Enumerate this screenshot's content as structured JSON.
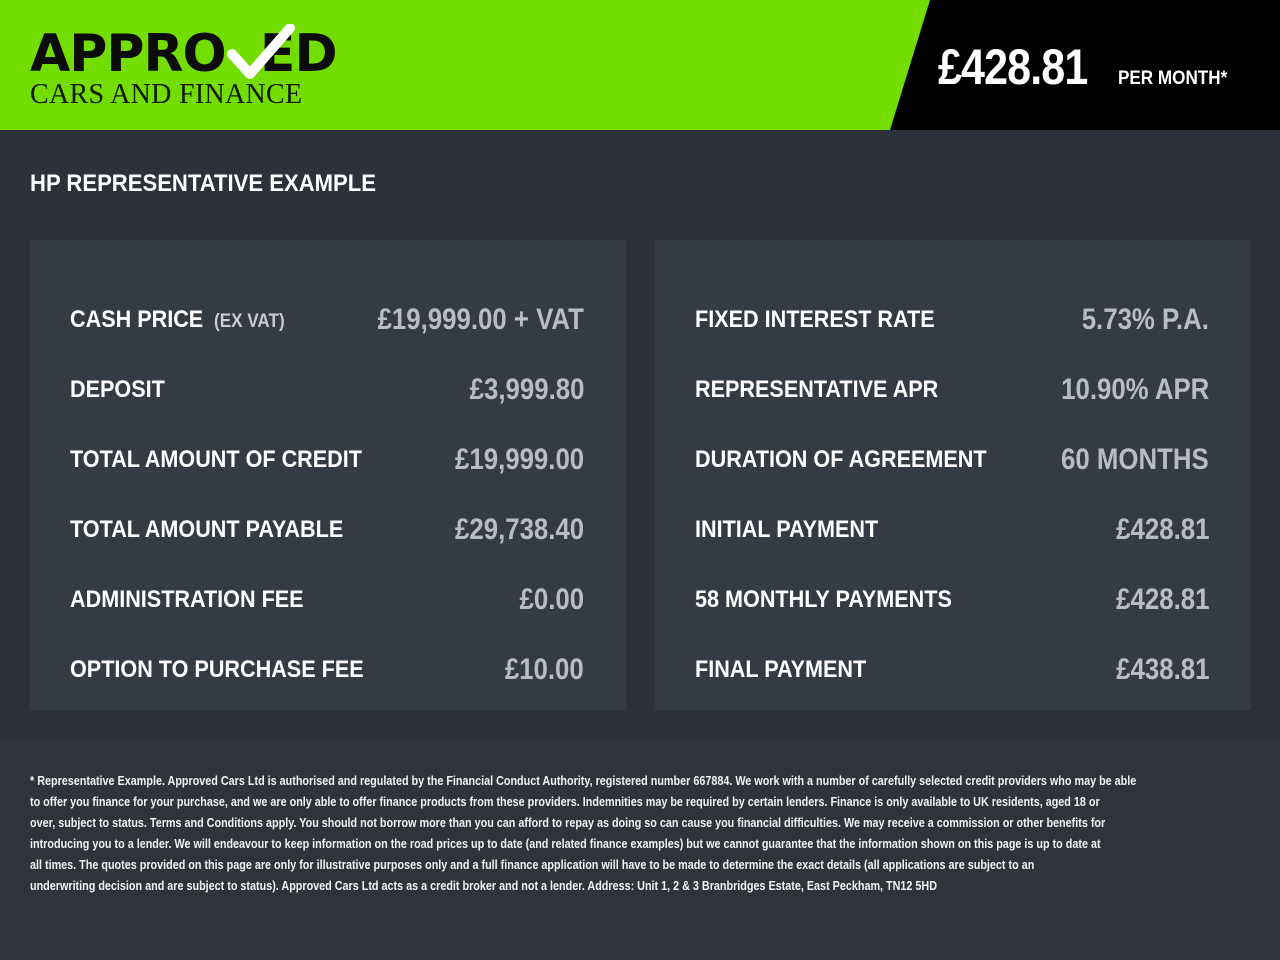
{
  "header": {
    "logo": {
      "line1": "APPROVED",
      "line2": "CARS AND FINANCE"
    },
    "price": "£428.81",
    "price_unit": "PER MONTH*",
    "colors": {
      "brand_green": "#74dd00",
      "price_bg": "#000000"
    }
  },
  "section_title": "HP REPRESENTATIVE EXAMPLE",
  "left_panel": [
    {
      "label": "CASH PRICE",
      "note": "(EX VAT)",
      "value": "£19,999.00 + VAT"
    },
    {
      "label": "DEPOSIT",
      "value": "£3,999.80"
    },
    {
      "label": "TOTAL AMOUNT OF CREDIT",
      "value": "£19,999.00"
    },
    {
      "label": "TOTAL AMOUNT PAYABLE",
      "value": "£29,738.40"
    },
    {
      "label": "ADMINISTRATION FEE",
      "value": "£0.00"
    },
    {
      "label": "OPTION TO PURCHASE FEE",
      "value": "£10.00"
    }
  ],
  "right_panel": [
    {
      "label": "FIXED INTEREST RATE",
      "value": "5.73% P.A."
    },
    {
      "label": "REPRESENTATIVE APR",
      "value": "10.90% APR"
    },
    {
      "label": "DURATION OF AGREEMENT",
      "value": "60 MONTHS"
    },
    {
      "label": "INITIAL PAYMENT",
      "value": "£428.81"
    },
    {
      "label": "58 MONTHLY PAYMENTS",
      "value": "£428.81"
    },
    {
      "label": "FINAL PAYMENT",
      "value": "£438.81"
    }
  ],
  "footer": {
    "lines": [
      "* Representative Example. Approved Cars Ltd is authorised and regulated by the Financial Conduct Authority, registered number 667884. We work with a number of carefully selected credit providers who may be able",
      "to offer you finance for your purchase, and we are only able to offer finance products from these providers. Indemnities may be required by certain lenders. Finance is only available to UK residents, aged 18 or",
      "over, subject to status. Terms and Conditions apply. You should not borrow more than you can afford to repay as doing so can cause you financial difficulties. We may receive a commission or other benefits for",
      "introducing you to a lender. We will endeavour to keep information on the road prices up to date (and related finance examples) but we cannot guarantee that the information shown on this page is up to date at",
      "all times. The quotes provided on this page are only for illustrative purposes only and a full finance application will have to be made to determine the exact details (all applications are subject to an",
      "underwriting decision and are subject to status). Approved Cars Ltd acts as a credit broker and not a lender. Address: Unit 1, 2 & 3 Branbridges Estate, East Peckham, TN12 5HD"
    ]
  }
}
